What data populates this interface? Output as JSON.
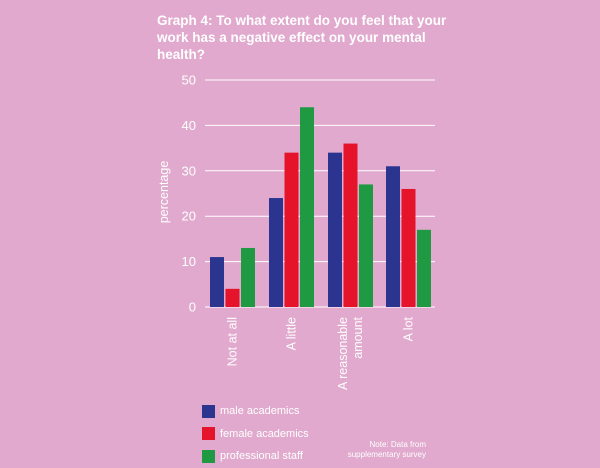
{
  "chart_data": {
    "type": "bar",
    "title": "Graph 4: To what extent do you feel that your work has a negative effect on your mental health?",
    "ylabel": "percentage",
    "xlabel": "",
    "ylim": [
      0,
      50
    ],
    "yticks": [
      0,
      10,
      20,
      30,
      40,
      50
    ],
    "grid": true,
    "legend_position": "bottom-left",
    "categories": [
      "Not at all",
      "A little",
      "A reasonable amount",
      "A lot"
    ],
    "category_lines": [
      [
        "Not at all"
      ],
      [
        "A little"
      ],
      [
        "A reasonable",
        "amount"
      ],
      [
        "A lot"
      ]
    ],
    "series": [
      {
        "name": "male academics",
        "color": "#2b3590",
        "values": [
          11,
          24,
          34,
          31
        ]
      },
      {
        "name": "female academics",
        "color": "#e5142a",
        "values": [
          4,
          34,
          36,
          26
        ]
      },
      {
        "name": "professional staff",
        "color": "#1f9a43",
        "values": [
          13,
          44,
          27,
          17
        ]
      }
    ],
    "note": "Note: Data from supplementary survey"
  }
}
